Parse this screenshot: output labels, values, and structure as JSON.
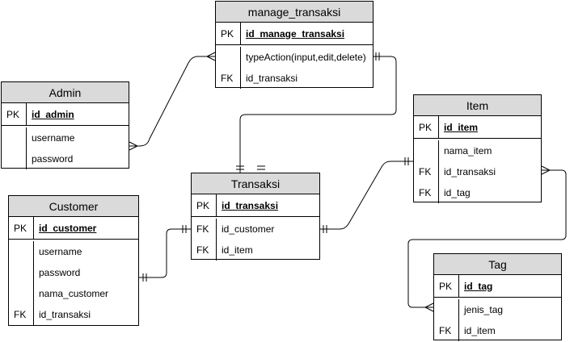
{
  "entities": {
    "manage_transaksi": {
      "title": "manage_transaksi",
      "pk": {
        "key": "PK",
        "name": "id_manage_transaksi"
      },
      "attrs": [
        {
          "key": "",
          "name": "typeAction(input,edit,delete)"
        },
        {
          "key": "FK",
          "name": "id_transaksi"
        }
      ]
    },
    "admin": {
      "title": "Admin",
      "pk": {
        "key": "PK",
        "name": "id_admin"
      },
      "attrs": [
        {
          "key": "",
          "name": "username"
        },
        {
          "key": "",
          "name": "password"
        }
      ]
    },
    "item": {
      "title": "Item",
      "pk": {
        "key": "PK",
        "name": "id_item"
      },
      "attrs": [
        {
          "key": "",
          "name": "nama_item"
        },
        {
          "key": "FK",
          "name": "id_transaksi"
        },
        {
          "key": "FK",
          "name": "id_tag"
        }
      ]
    },
    "transaksi": {
      "title": "Transaksi",
      "pk": {
        "key": "PK",
        "name": "id_transaksi"
      },
      "attrs": [
        {
          "key": "FK",
          "name": "id_customer"
        },
        {
          "key": "FK",
          "name": "id_item"
        }
      ]
    },
    "customer": {
      "title": "Customer",
      "pk": {
        "key": "PK",
        "name": "id_customer"
      },
      "attrs": [
        {
          "key": "",
          "name": "username"
        },
        {
          "key": "",
          "name": "password"
        },
        {
          "key": "",
          "name": "nama_customer"
        },
        {
          "key": "FK",
          "name": "id_transaksi"
        }
      ]
    },
    "tag": {
      "title": "Tag",
      "pk": {
        "key": "PK",
        "name": "id_tag"
      },
      "attrs": [
        {
          "key": "",
          "name": "jenis_tag"
        },
        {
          "key": "FK",
          "name": "id_item"
        }
      ]
    }
  },
  "relationships": [
    {
      "from": "admin",
      "to": "manage_transaksi",
      "from_end": "many",
      "to_end": "many"
    },
    {
      "from": "manage_transaksi",
      "to": "transaksi",
      "from_end": "one",
      "to_end": "one"
    },
    {
      "from": "customer",
      "to": "transaksi",
      "from_end": "one",
      "to_end": "one"
    },
    {
      "from": "transaksi",
      "to": "item",
      "from_end": "one",
      "to_end": "one"
    },
    {
      "from": "item",
      "to": "tag",
      "from_end": "many",
      "to_end": "many"
    }
  ]
}
